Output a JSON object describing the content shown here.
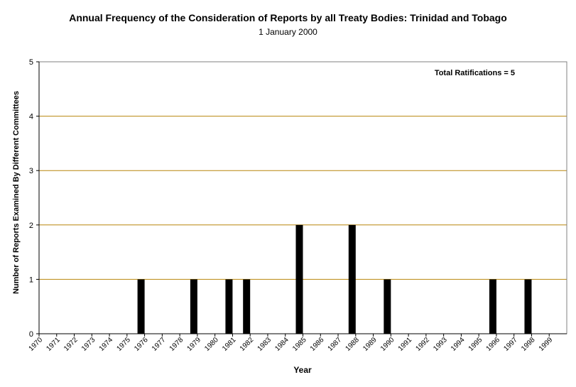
{
  "chart_data": {
    "type": "bar",
    "title": "Annual Frequency of the Consideration of Reports by all Treaty Bodies: Trinidad and Tobago",
    "subtitle": "1 January 2000",
    "xlabel": "Year",
    "ylabel": "Number of Reports Examined By Different Committees",
    "annotation": "Total Ratifications = 5",
    "ylim": [
      0,
      5
    ],
    "yticks": [
      "0",
      "1",
      "2",
      "3",
      "4",
      "5"
    ],
    "categories": [
      "1970",
      "1971",
      "1972",
      "1973",
      "1974",
      "1975",
      "1976",
      "1977",
      "1978",
      "1979",
      "1980",
      "1981",
      "1982",
      "1983",
      "1984",
      "1985",
      "1986",
      "1987",
      "1988",
      "1989",
      "1990",
      "1991",
      "1992",
      "1993",
      "1994",
      "1995",
      "1996",
      "1997",
      "1998",
      "1999"
    ],
    "values": [
      0,
      0,
      0,
      0,
      0,
      1,
      0,
      0,
      1,
      0,
      1,
      1,
      0,
      0,
      2,
      0,
      0,
      2,
      0,
      1,
      0,
      0,
      0,
      0,
      0,
      1,
      0,
      1,
      0,
      0
    ],
    "grid": true,
    "bar_color": "#000000",
    "grid_color": "#b8860b"
  }
}
